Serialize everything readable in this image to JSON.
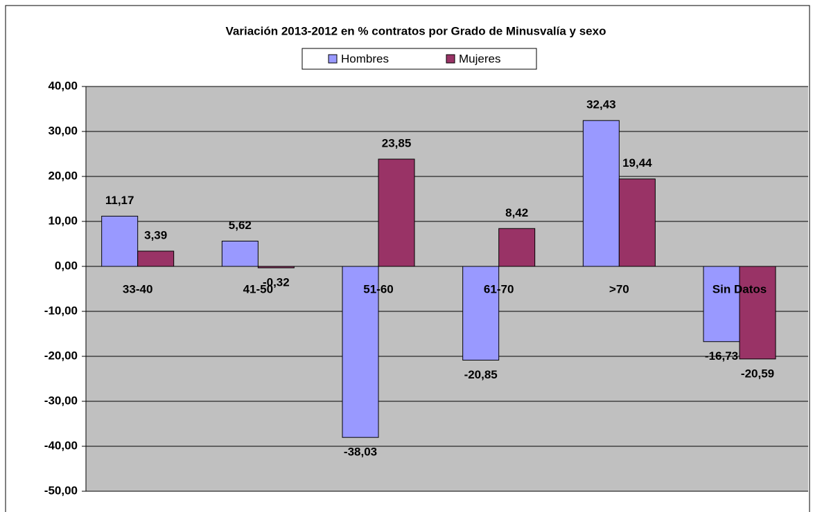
{
  "chart_data": {
    "type": "bar",
    "title": "Variación 2013-2012 en % contratos por Grado de Minusvalía y sexo",
    "categories": [
      "33-40",
      "41-50",
      "51-60",
      "61-70",
      ">70",
      "Sin Datos"
    ],
    "series": [
      {
        "name": "Hombres",
        "color": "#9999ff",
        "values": [
          11.17,
          5.62,
          -38.03,
          -20.85,
          32.43,
          -16.73
        ],
        "value_labels": [
          "11,17",
          "5,62",
          "-38,03",
          "-20,85",
          "32,43",
          "-16,73"
        ]
      },
      {
        "name": "Mujeres",
        "color": "#993366",
        "values": [
          3.39,
          -0.32,
          23.85,
          8.42,
          19.44,
          -20.59
        ],
        "value_labels": [
          "3,39",
          "-0,32",
          "23,85",
          "8,42",
          "19,44",
          "-20,59"
        ]
      }
    ],
    "ylim": [
      -50,
      40
    ],
    "yticks": [
      {
        "value": -50,
        "label": "-50,00"
      },
      {
        "value": -40,
        "label": "-40,00"
      },
      {
        "value": -30,
        "label": "-30,00"
      },
      {
        "value": -20,
        "label": "-20,00"
      },
      {
        "value": -10,
        "label": "-10,00"
      },
      {
        "value": 0,
        "label": "0,00"
      },
      {
        "value": 10,
        "label": "10,00"
      },
      {
        "value": 20,
        "label": "20,00"
      },
      {
        "value": 30,
        "label": "30,00"
      },
      {
        "value": 40,
        "label": "40,00"
      }
    ],
    "grid": true,
    "legend": "top"
  }
}
